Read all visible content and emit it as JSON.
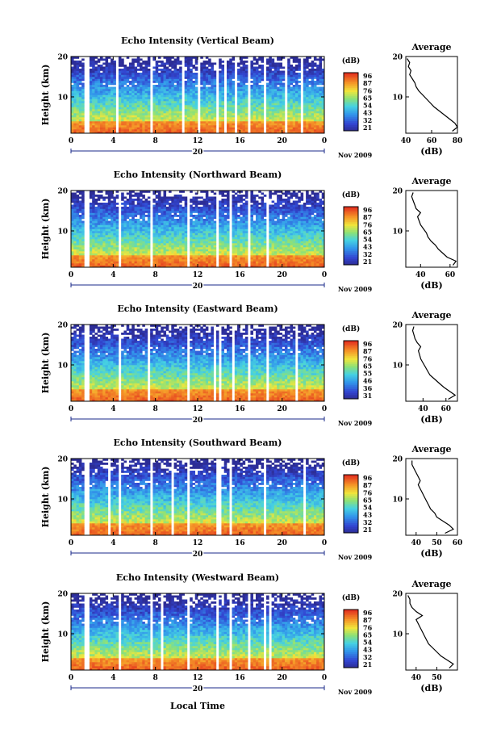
{
  "figure": {
    "xlabel": "Local Time",
    "avg_title": "Average",
    "cbar_unit": "(dB)",
    "avg_xlabel": "(dB)",
    "ylabel": "Height (km)",
    "date_marker": "20",
    "month_label": "Nov 2009"
  },
  "chart_data": [
    {
      "type": "heatmap",
      "title": "Echo Intensity (Vertical Beam)",
      "x_ticks": [
        "0",
        "4",
        "8",
        "12",
        "16",
        "20",
        "0"
      ],
      "xlim": [
        0,
        24
      ],
      "y_ticks": [
        "20",
        "10"
      ],
      "ylim": [
        1,
        20
      ],
      "colorbar_ticks": [
        "96",
        "87",
        "76",
        "65",
        "54",
        "43",
        "32",
        "21"
      ],
      "avg_profile": {
        "x_ticks": [
          "40",
          "60",
          "80"
        ],
        "xlim": [
          40,
          80
        ],
        "heights": [
          1.5,
          2.5,
          3.5,
          4.5,
          5.5,
          6.5,
          7.5,
          8.5,
          9.5,
          10.5,
          11.5,
          12.5,
          13.5,
          14.5,
          15.5,
          16.5,
          17.5,
          18.5,
          19.5
        ],
        "values": [
          76,
          80,
          78,
          74,
          70,
          66,
          62,
          59,
          56,
          53,
          50,
          48,
          47,
          45,
          43,
          44,
          42,
          43,
          41
        ]
      }
    },
    {
      "type": "heatmap",
      "title": "Echo Intensity (Northward Beam)",
      "x_ticks": [
        "0",
        "4",
        "8",
        "12",
        "16",
        "20",
        "0"
      ],
      "xlim": [
        0,
        24
      ],
      "y_ticks": [
        "20",
        "10"
      ],
      "ylim": [
        1,
        20
      ],
      "colorbar_ticks": [
        "96",
        "87",
        "76",
        "65",
        "54",
        "43",
        "32",
        "21"
      ],
      "avg_profile": {
        "x_ticks": [
          "40",
          "60"
        ],
        "xlim": [
          30,
          65
        ],
        "heights": [
          1.5,
          2.5,
          3.5,
          4.5,
          5.5,
          6.5,
          7.5,
          8.5,
          9.5,
          10.5,
          11.5,
          12.5,
          13.5,
          14.5,
          15.5,
          16.5,
          17.5,
          18.5,
          19.5
        ],
        "values": [
          62,
          64,
          58,
          55,
          52,
          50,
          47,
          45,
          44,
          42,
          40,
          39,
          38,
          40,
          37,
          36,
          35,
          34,
          35
        ]
      }
    },
    {
      "type": "heatmap",
      "title": "Echo Intensity (Eastward Beam)",
      "x_ticks": [
        "0",
        "4",
        "8",
        "12",
        "16",
        "20",
        "0"
      ],
      "xlim": [
        0,
        24
      ],
      "y_ticks": [
        "20",
        "10"
      ],
      "ylim": [
        1,
        20
      ],
      "colorbar_ticks": [
        "96",
        "87",
        "76",
        "65",
        "55",
        "46",
        "36",
        "31"
      ],
      "avg_profile": {
        "x_ticks": [
          "40",
          "60"
        ],
        "xlim": [
          25,
          70
        ],
        "heights": [
          1.5,
          2.5,
          3.5,
          4.5,
          5.5,
          6.5,
          7.5,
          8.5,
          9.5,
          10.5,
          11.5,
          12.5,
          13.5,
          14.5,
          15.5,
          16.5,
          17.5,
          18.5,
          19.5
        ],
        "values": [
          62,
          68,
          63,
          58,
          54,
          50,
          46,
          44,
          42,
          40,
          38,
          37,
          36,
          38,
          35,
          33,
          32,
          31,
          32
        ]
      }
    },
    {
      "type": "heatmap",
      "title": "Echo Intensity (Southward Beam)",
      "x_ticks": [
        "0",
        "4",
        "8",
        "12",
        "16",
        "20",
        "0"
      ],
      "xlim": [
        0,
        24
      ],
      "y_ticks": [
        "20",
        "10"
      ],
      "ylim": [
        1,
        20
      ],
      "colorbar_ticks": [
        "96",
        "87",
        "76",
        "65",
        "54",
        "43",
        "32",
        "21"
      ],
      "avg_profile": {
        "x_ticks": [
          "40",
          "50",
          "60"
        ],
        "xlim": [
          35,
          60
        ],
        "heights": [
          1.5,
          2.5,
          3.5,
          4.5,
          5.5,
          6.5,
          7.5,
          8.5,
          9.5,
          10.5,
          11.5,
          12.5,
          13.5,
          14.5,
          15.5,
          16.5,
          17.5,
          18.5,
          19.5
        ],
        "values": [
          54,
          58,
          56,
          53,
          50,
          49,
          47,
          46,
          45,
          44,
          43,
          42,
          41,
          42,
          41,
          40,
          39,
          38,
          38
        ]
      }
    },
    {
      "type": "heatmap",
      "title": "Echo Intensity (Westward Beam)",
      "x_ticks": [
        "0",
        "4",
        "8",
        "12",
        "16",
        "20",
        "0"
      ],
      "xlim": [
        0,
        24
      ],
      "y_ticks": [
        "20",
        "10"
      ],
      "ylim": [
        1,
        20
      ],
      "colorbar_ticks": [
        "96",
        "87",
        "76",
        "65",
        "54",
        "43",
        "32",
        "21"
      ],
      "avg_profile": {
        "x_ticks": [
          "40",
          "50"
        ],
        "xlim": [
          35,
          60
        ],
        "heights": [
          1.5,
          2.5,
          3.5,
          4.5,
          5.5,
          6.5,
          7.5,
          8.5,
          9.5,
          10.5,
          11.5,
          12.5,
          13.5,
          14.5,
          15.5,
          16.5,
          17.5,
          18.5,
          19.5
        ],
        "values": [
          56,
          58,
          55,
          52,
          50,
          48,
          46,
          45,
          44,
          43,
          42,
          41,
          40,
          43,
          40,
          38,
          37,
          37,
          36
        ]
      }
    }
  ]
}
